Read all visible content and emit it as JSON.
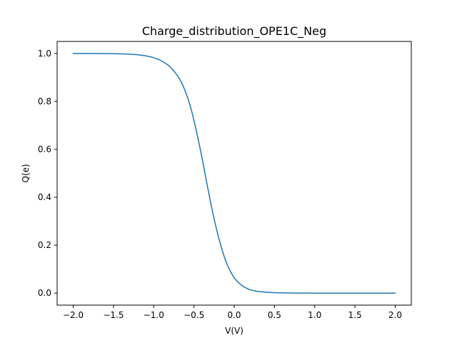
{
  "chart_data": {
    "type": "line",
    "title": "Charge_distribution_OPE1C_Neg",
    "xlabel": "V(V)",
    "ylabel": "Q(e)",
    "xlim": [
      -2.2,
      2.2
    ],
    "ylim": [
      -0.05,
      1.05
    ],
    "xticks": [
      -2.0,
      -1.5,
      -1.0,
      -0.5,
      0.0,
      0.5,
      1.0,
      1.5,
      2.0
    ],
    "xtick_labels": [
      "−2.0",
      "−1.5",
      "−1.0",
      "−0.5",
      "0.0",
      "0.5",
      "1.0",
      "1.5",
      "2.0"
    ],
    "yticks": [
      0.0,
      0.2,
      0.4,
      0.6,
      0.8,
      1.0
    ],
    "ytick_labels": [
      "0.0",
      "0.2",
      "0.4",
      "0.6",
      "0.8",
      "1.0"
    ],
    "grid": false,
    "series": [
      {
        "color": "#1f77b4",
        "x": [
          -2.0,
          -1.75,
          -1.5,
          -1.25,
          -1.1,
          -1.0,
          -0.9,
          -0.8,
          -0.7,
          -0.65,
          -0.6,
          -0.55,
          -0.5,
          -0.45,
          -0.4,
          -0.35,
          -0.3,
          -0.25,
          -0.2,
          -0.15,
          -0.1,
          -0.05,
          0.0,
          0.05,
          0.1,
          0.15,
          0.2,
          0.25,
          0.3,
          0.4,
          0.5,
          0.6,
          0.7,
          0.8,
          1.0,
          1.25,
          1.5,
          1.75,
          2.0
        ],
        "y": [
          1.0,
          1.0,
          0.999,
          0.996,
          0.99,
          0.982,
          0.968,
          0.945,
          0.905,
          0.875,
          0.835,
          0.785,
          0.72,
          0.645,
          0.565,
          0.475,
          0.39,
          0.31,
          0.24,
          0.18,
          0.13,
          0.093,
          0.064,
          0.045,
          0.031,
          0.021,
          0.014,
          0.01,
          0.007,
          0.004,
          0.002,
          0.001,
          0.0005,
          0.0003,
          0.0001,
          0.0,
          0.0,
          0.0,
          0.0
        ]
      }
    ]
  }
}
